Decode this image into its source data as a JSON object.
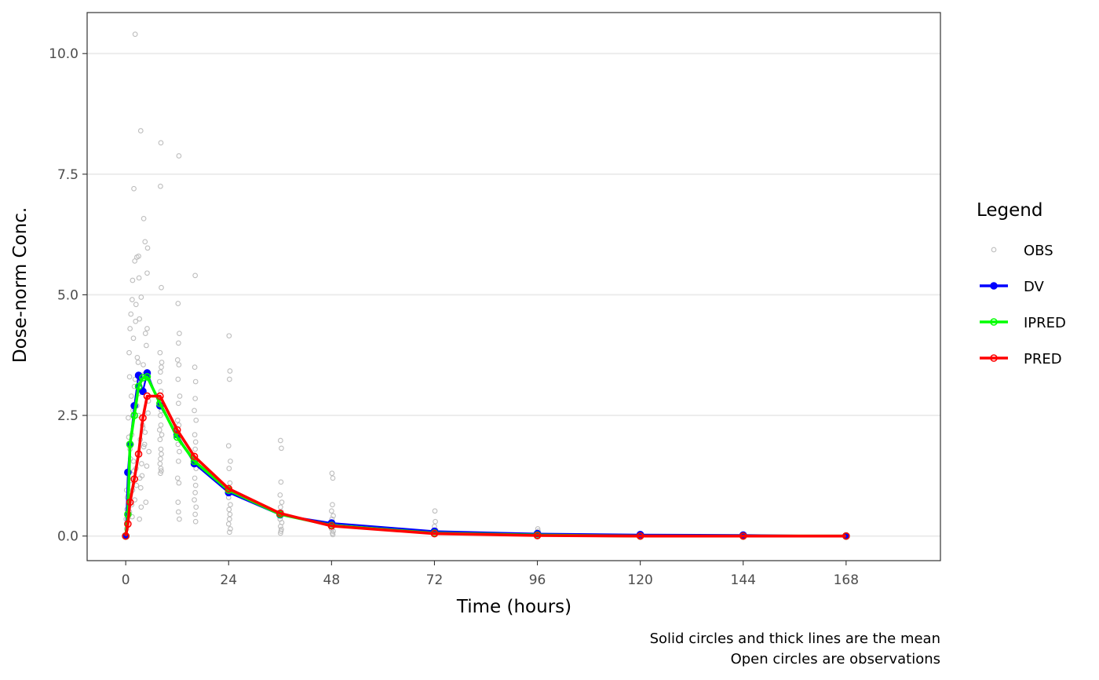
{
  "chart_data": {
    "type": "line",
    "title": "",
    "xlabel": "Time (hours)",
    "ylabel": "Dose-norm Conc.",
    "caption_lines": [
      "Solid circles and thick lines are the mean",
      "Open circles are observations"
    ],
    "xlim": [
      -9,
      190
    ],
    "ylim": [
      -0.51,
      10.85
    ],
    "x_ticks": [
      0,
      24,
      48,
      72,
      96,
      120,
      144,
      168
    ],
    "y_ticks": [
      0.0,
      2.5,
      5.0,
      7.5,
      10.0
    ],
    "y_tick_labels": [
      "0.0",
      "2.5",
      "5.0",
      "7.5",
      "10.0"
    ],
    "grid": "horizontal-major",
    "legend": {
      "title": "Legend",
      "placement": "right",
      "entries": [
        {
          "label": "OBS",
          "color": "#bdbdbd",
          "style": "open-point"
        },
        {
          "label": "DV",
          "color": "#0000ff",
          "style": "line-point"
        },
        {
          "label": "IPRED",
          "color": "#00ff00",
          "style": "line-point"
        },
        {
          "label": "PRED",
          "color": "#ff0000",
          "style": "line-point"
        }
      ]
    },
    "series": [
      {
        "name": "DV",
        "color": "#0000ff",
        "x": [
          0,
          0.5,
          1,
          2,
          3,
          4,
          5,
          8,
          12,
          16,
          24,
          36,
          48,
          72,
          96,
          120,
          144,
          168
        ],
        "y": [
          0.0,
          1.32,
          1.9,
          2.7,
          3.33,
          3.0,
          3.38,
          2.7,
          2.1,
          1.5,
          0.9,
          0.44,
          0.27,
          0.1,
          0.05,
          0.03,
          0.02,
          0.0
        ]
      },
      {
        "name": "IPRED",
        "color": "#00ff00",
        "x": [
          0,
          0.5,
          1,
          2,
          3,
          4,
          5,
          8,
          12,
          16,
          24,
          36,
          48,
          72,
          96,
          120,
          144,
          168
        ],
        "y": [
          0.0,
          0.45,
          1.9,
          2.5,
          3.1,
          3.28,
          3.3,
          2.75,
          2.05,
          1.55,
          0.95,
          0.45,
          0.22,
          0.06,
          0.02,
          0.0,
          0.0,
          0.0
        ]
      },
      {
        "name": "PRED",
        "color": "#ff0000",
        "x": [
          0,
          0.5,
          1,
          2,
          3,
          4,
          5,
          8,
          12,
          16,
          24,
          36,
          48,
          72,
          96,
          120,
          144,
          168
        ],
        "y": [
          0.0,
          0.25,
          0.7,
          1.18,
          1.7,
          2.45,
          2.9,
          2.9,
          2.2,
          1.65,
          0.98,
          0.47,
          0.21,
          0.05,
          0.01,
          0.0,
          0.0,
          0.0
        ]
      }
    ],
    "observations": {
      "name": "OBS",
      "color": "#bdbdbd",
      "x": [
        2.2,
        3.5,
        8.2,
        12.4,
        1.9,
        8.1,
        4.2,
        4.5,
        5.1,
        2.6,
        3.0,
        16.2,
        5.0,
        8.3,
        1.6,
        1.0,
        1.5,
        0.8,
        2.1,
        3.1,
        1.2,
        0.6,
        2.4,
        1.8,
        4.6,
        0.9,
        2.9,
        3.6,
        1.3,
        0.5,
        4.8,
        3.2,
        2.7,
        1.4,
        5.3,
        4.1,
        2.3,
        1.7,
        3.9,
        0.7,
        4.4,
        3.4,
        2.0,
        1.1,
        5.2,
        2.8,
        3.7,
        0.4,
        1.9,
        4.9,
        3.3,
        2.5,
        1.6,
        4.0,
        0.3,
        5.4,
        2.2,
        3.8,
        1.2,
        4.7,
        0.8,
        2.9,
        3.5,
        1.4,
        4.3,
        2.6,
        0.6,
        5.0,
        3.0,
        1.0,
        2.4,
        4.5,
        1.8,
        3.6,
        0.5,
        2.1,
        4.2,
        0.9,
        3.2,
        1.5,
        8.0,
        8.3,
        8.1,
        7.9,
        8.4,
        8.2,
        8.0,
        8.3,
        8.1,
        8.2,
        7.9,
        8.4,
        8.0,
        8.2,
        8.3,
        8.1,
        8.0,
        8.2,
        8.3,
        8.1,
        12.2,
        12.5,
        12.3,
        12.1,
        12.4,
        12.2,
        12.6,
        12.3,
        12.1,
        12.4,
        12.2,
        12.5,
        12.3,
        12.1,
        12.4,
        12.2,
        12.3,
        12.5,
        16.1,
        16.3,
        16.2,
        16.0,
        16.4,
        16.1,
        16.3,
        16.2,
        16.0,
        16.4,
        16.1,
        16.3,
        16.2,
        16.0,
        16.4,
        16.2,
        16.3,
        24.1,
        24.3,
        24.2,
        24.0,
        24.4,
        24.1,
        24.3,
        24.2,
        24.0,
        24.4,
        24.1,
        24.3,
        24.2,
        24.0,
        24.4,
        24.2,
        36.1,
        36.3,
        36.2,
        36.0,
        36.4,
        36.1,
        36.3,
        36.2,
        36.0,
        36.4,
        36.1,
        36.3,
        36.2,
        36.1,
        48.1,
        48.3,
        48.2,
        48.0,
        48.4,
        48.1,
        48.3,
        48.2,
        48.0,
        48.4,
        48.2,
        48.3,
        72.1,
        72.2,
        72.0,
        72.3,
        72.1,
        72.2,
        96.1,
        96.2,
        96.0,
        96.1,
        120.1,
        120.0,
        144.1,
        144.0,
        168.0,
        168.1,
        0,
        0.2,
        0.1,
        0.3,
        0.2
      ],
      "y": [
        10.4,
        8.4,
        8.15,
        7.88,
        7.2,
        7.25,
        6.58,
        6.1,
        5.97,
        5.78,
        5.8,
        5.4,
        5.45,
        5.15,
        5.3,
        4.3,
        4.9,
        3.8,
        5.7,
        5.35,
        4.6,
        2.45,
        4.8,
        4.1,
        4.2,
        3.3,
        3.6,
        4.95,
        2.9,
        1.3,
        3.95,
        4.5,
        3.7,
        2.1,
        2.8,
        3.55,
        4.45,
        2.6,
        2.3,
        2.05,
        1.9,
        2.0,
        3.1,
        1.6,
        2.55,
        1.7,
        1.5,
        0.8,
        1.35,
        1.45,
        1.2,
        1.05,
        0.95,
        2.25,
        0.55,
        1.75,
        3.25,
        1.25,
        1.15,
        0.7,
        0.9,
        2.95,
        1.0,
        0.65,
        3.35,
        2.7,
        0.85,
        4.3,
        2.5,
        1.8,
        1.4,
        2.15,
        1.55,
        0.6,
        0.45,
        0.75,
        1.85,
        0.5,
        0.35,
        0.4,
        3.8,
        3.5,
        3.4,
        3.2,
        3.6,
        3.0,
        2.8,
        2.6,
        2.5,
        2.3,
        2.2,
        2.1,
        2.0,
        1.8,
        1.7,
        1.6,
        1.5,
        1.4,
        1.35,
        1.3,
        4.82,
        4.2,
        4.0,
        3.65,
        3.55,
        3.25,
        2.9,
        2.75,
        2.4,
        2.3,
        1.9,
        1.75,
        1.55,
        1.2,
        1.1,
        0.7,
        0.5,
        0.35,
        3.5,
        3.2,
        2.85,
        2.6,
        2.4,
        2.1,
        1.95,
        1.8,
        1.6,
        1.4,
        1.2,
        1.05,
        0.9,
        0.75,
        0.6,
        0.45,
        0.3,
        4.15,
        3.42,
        3.25,
        1.87,
        1.55,
        1.4,
        1.1,
        0.95,
        0.8,
        0.65,
        0.55,
        0.45,
        0.35,
        0.25,
        0.15,
        0.08,
        1.98,
        1.82,
        1.12,
        0.85,
        0.7,
        0.6,
        0.5,
        0.42,
        0.35,
        0.28,
        0.2,
        0.14,
        0.1,
        0.06,
        1.3,
        1.2,
        0.65,
        0.52,
        0.42,
        0.35,
        0.28,
        0.22,
        0.15,
        0.1,
        0.06,
        0.03,
        0.52,
        0.3,
        0.2,
        0.12,
        0.07,
        0.04,
        0.15,
        0.1,
        0.06,
        0.03,
        0.04,
        0.02,
        0.03,
        0.01,
        0.01,
        0.0,
        0.0,
        0.15,
        0.35,
        0.55,
        0.95
      ]
    }
  }
}
